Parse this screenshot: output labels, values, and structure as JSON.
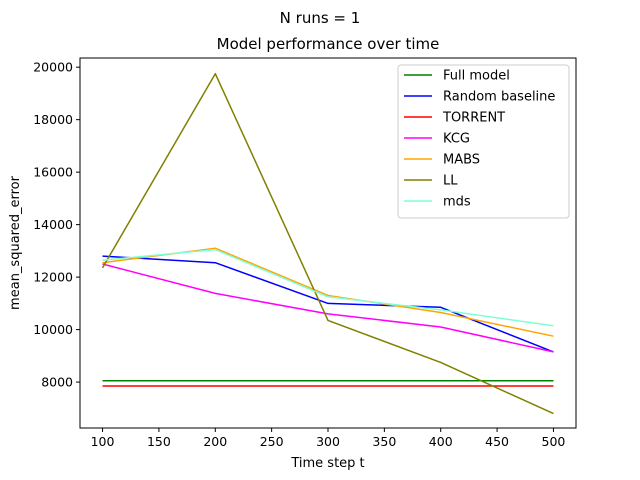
{
  "chart_data": {
    "type": "line",
    "suptitle": "N runs = 1",
    "title": "Model performance over time",
    "xlabel": "Time step t",
    "ylabel": "mean_squared_error",
    "xlim": [
      80,
      520
    ],
    "ylim": [
      6250,
      20350
    ],
    "xticks": [
      100,
      150,
      200,
      250,
      300,
      350,
      400,
      450,
      500
    ],
    "yticks": [
      8000,
      10000,
      12000,
      14000,
      16000,
      18000,
      20000
    ],
    "grid": false,
    "legend_position": "top-right",
    "x": [
      100,
      200,
      300,
      400,
      500
    ],
    "series": [
      {
        "name": "Full model",
        "color": "#008000",
        "values": [
          8050,
          8050,
          8050,
          8050,
          8050
        ]
      },
      {
        "name": "Random baseline",
        "color": "#0000ff",
        "values": [
          12800,
          12550,
          11000,
          10850,
          9150
        ]
      },
      {
        "name": "TORRENT",
        "color": "#ff0000",
        "values": [
          7850,
          7850,
          7850,
          7850,
          7850
        ]
      },
      {
        "name": "KCG",
        "color": "#ff00ff",
        "values": [
          12500,
          11380,
          10600,
          10100,
          9150
        ]
      },
      {
        "name": "MABS",
        "color": "#ffa500",
        "values": [
          12550,
          13100,
          11300,
          10650,
          9750
        ]
      },
      {
        "name": "LL",
        "color": "#808000",
        "values": [
          12350,
          19750,
          10350,
          8750,
          6800
        ]
      },
      {
        "name": "mds",
        "color": "#7fffd4",
        "values": [
          12650,
          13050,
          11250,
          10750,
          10150
        ]
      }
    ]
  }
}
